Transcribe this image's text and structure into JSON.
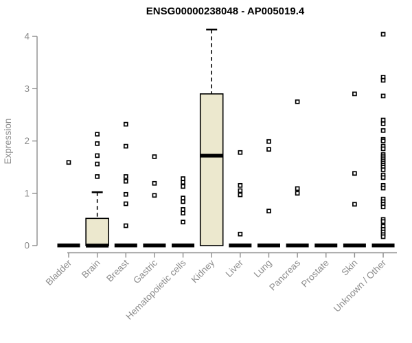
{
  "chart_data": {
    "type": "boxplot",
    "title": "ENSG00000238048 - AP005019.4",
    "xlabel": "",
    "ylabel": "Expression",
    "ylim": [
      0,
      4.15
    ],
    "yticks": [
      0,
      1,
      2,
      3,
      4
    ],
    "grid": false,
    "legend": "none",
    "categories": [
      "Bladder",
      "Brain",
      "Breast",
      "Gastric",
      "Hematopoietic cells",
      "Kidney",
      "Liver",
      "Lung",
      "Pancreas",
      "Prostate",
      "Skin",
      "Unknown / Other"
    ],
    "boxes": [
      {
        "category": "Bladder",
        "q1": 0,
        "median": 0,
        "q3": 0,
        "whisker_low": 0,
        "whisker_high": 0,
        "outliers": [
          1.59
        ]
      },
      {
        "category": "Brain",
        "q1": 0,
        "median": 0,
        "q3": 0.52,
        "whisker_low": 0,
        "whisker_high": 1.02,
        "outliers": [
          2.13,
          1.95,
          1.72,
          1.56,
          1.32
        ]
      },
      {
        "category": "Breast",
        "q1": 0,
        "median": 0,
        "q3": 0,
        "whisker_low": 0,
        "whisker_high": 0,
        "outliers": [
          2.32,
          1.9,
          1.32,
          1.23,
          0.98,
          0.8,
          0.38
        ]
      },
      {
        "category": "Gastric",
        "q1": 0,
        "median": 0,
        "q3": 0,
        "whisker_low": 0,
        "whisker_high": 0,
        "outliers": [
          1.7,
          1.19,
          0.96
        ]
      },
      {
        "category": "Hematopoietic cells",
        "q1": 0,
        "median": 0,
        "q3": 0,
        "whisker_low": 0,
        "whisker_high": 0,
        "outliers": [
          1.28,
          1.21,
          1.13,
          0.91,
          0.84,
          0.69,
          0.62,
          0.45
        ]
      },
      {
        "category": "Kidney",
        "q1": 0,
        "median": 1.72,
        "q3": 2.9,
        "whisker_low": 0,
        "whisker_high": 4.13,
        "outliers": []
      },
      {
        "category": "Liver",
        "q1": 0,
        "median": 0,
        "q3": 0,
        "whisker_low": 0,
        "whisker_high": 0,
        "outliers": [
          1.78,
          1.15,
          1.05,
          0.97,
          0.22
        ]
      },
      {
        "category": "Lung",
        "q1": 0,
        "median": 0,
        "q3": 0,
        "whisker_low": 0,
        "whisker_high": 0,
        "outliers": [
          1.99,
          1.84,
          0.66
        ]
      },
      {
        "category": "Pancreas",
        "q1": 0,
        "median": 0,
        "q3": 0,
        "whisker_low": 0,
        "whisker_high": 0,
        "outliers": [
          2.75,
          1.09,
          1.0
        ]
      },
      {
        "category": "Prostate",
        "q1": 0,
        "median": 0,
        "q3": 0,
        "whisker_low": 0,
        "whisker_high": 0,
        "outliers": []
      },
      {
        "category": "Skin",
        "q1": 0,
        "median": 0,
        "q3": 0,
        "whisker_low": 0,
        "whisker_high": 0,
        "outliers": [
          2.9,
          1.38,
          0.79
        ]
      },
      {
        "category": "Unknown / Other",
        "q1": 0,
        "median": 0,
        "q3": 0,
        "whisker_low": 0,
        "whisker_high": 0,
        "outliers": [
          4.04,
          3.22,
          3.16,
          2.86,
          2.4,
          2.33,
          2.2,
          2.03,
          2.0,
          1.9,
          1.85,
          1.74,
          1.7,
          1.66,
          1.62,
          1.58,
          1.54,
          1.5,
          1.45,
          1.35,
          1.3,
          1.15,
          1.1,
          0.89,
          0.84,
          0.79,
          0.74,
          0.5,
          0.46,
          0.37,
          0.31,
          0.26,
          0.21,
          0.17
        ]
      }
    ],
    "colors": {
      "box_fill": "#ece8ce",
      "box_border": "#000000",
      "median": "#000000",
      "whisker": "#000000",
      "outlier": "#000000",
      "axis": "#8c8c8c",
      "title": "#000000",
      "background": "#ffffff"
    }
  }
}
